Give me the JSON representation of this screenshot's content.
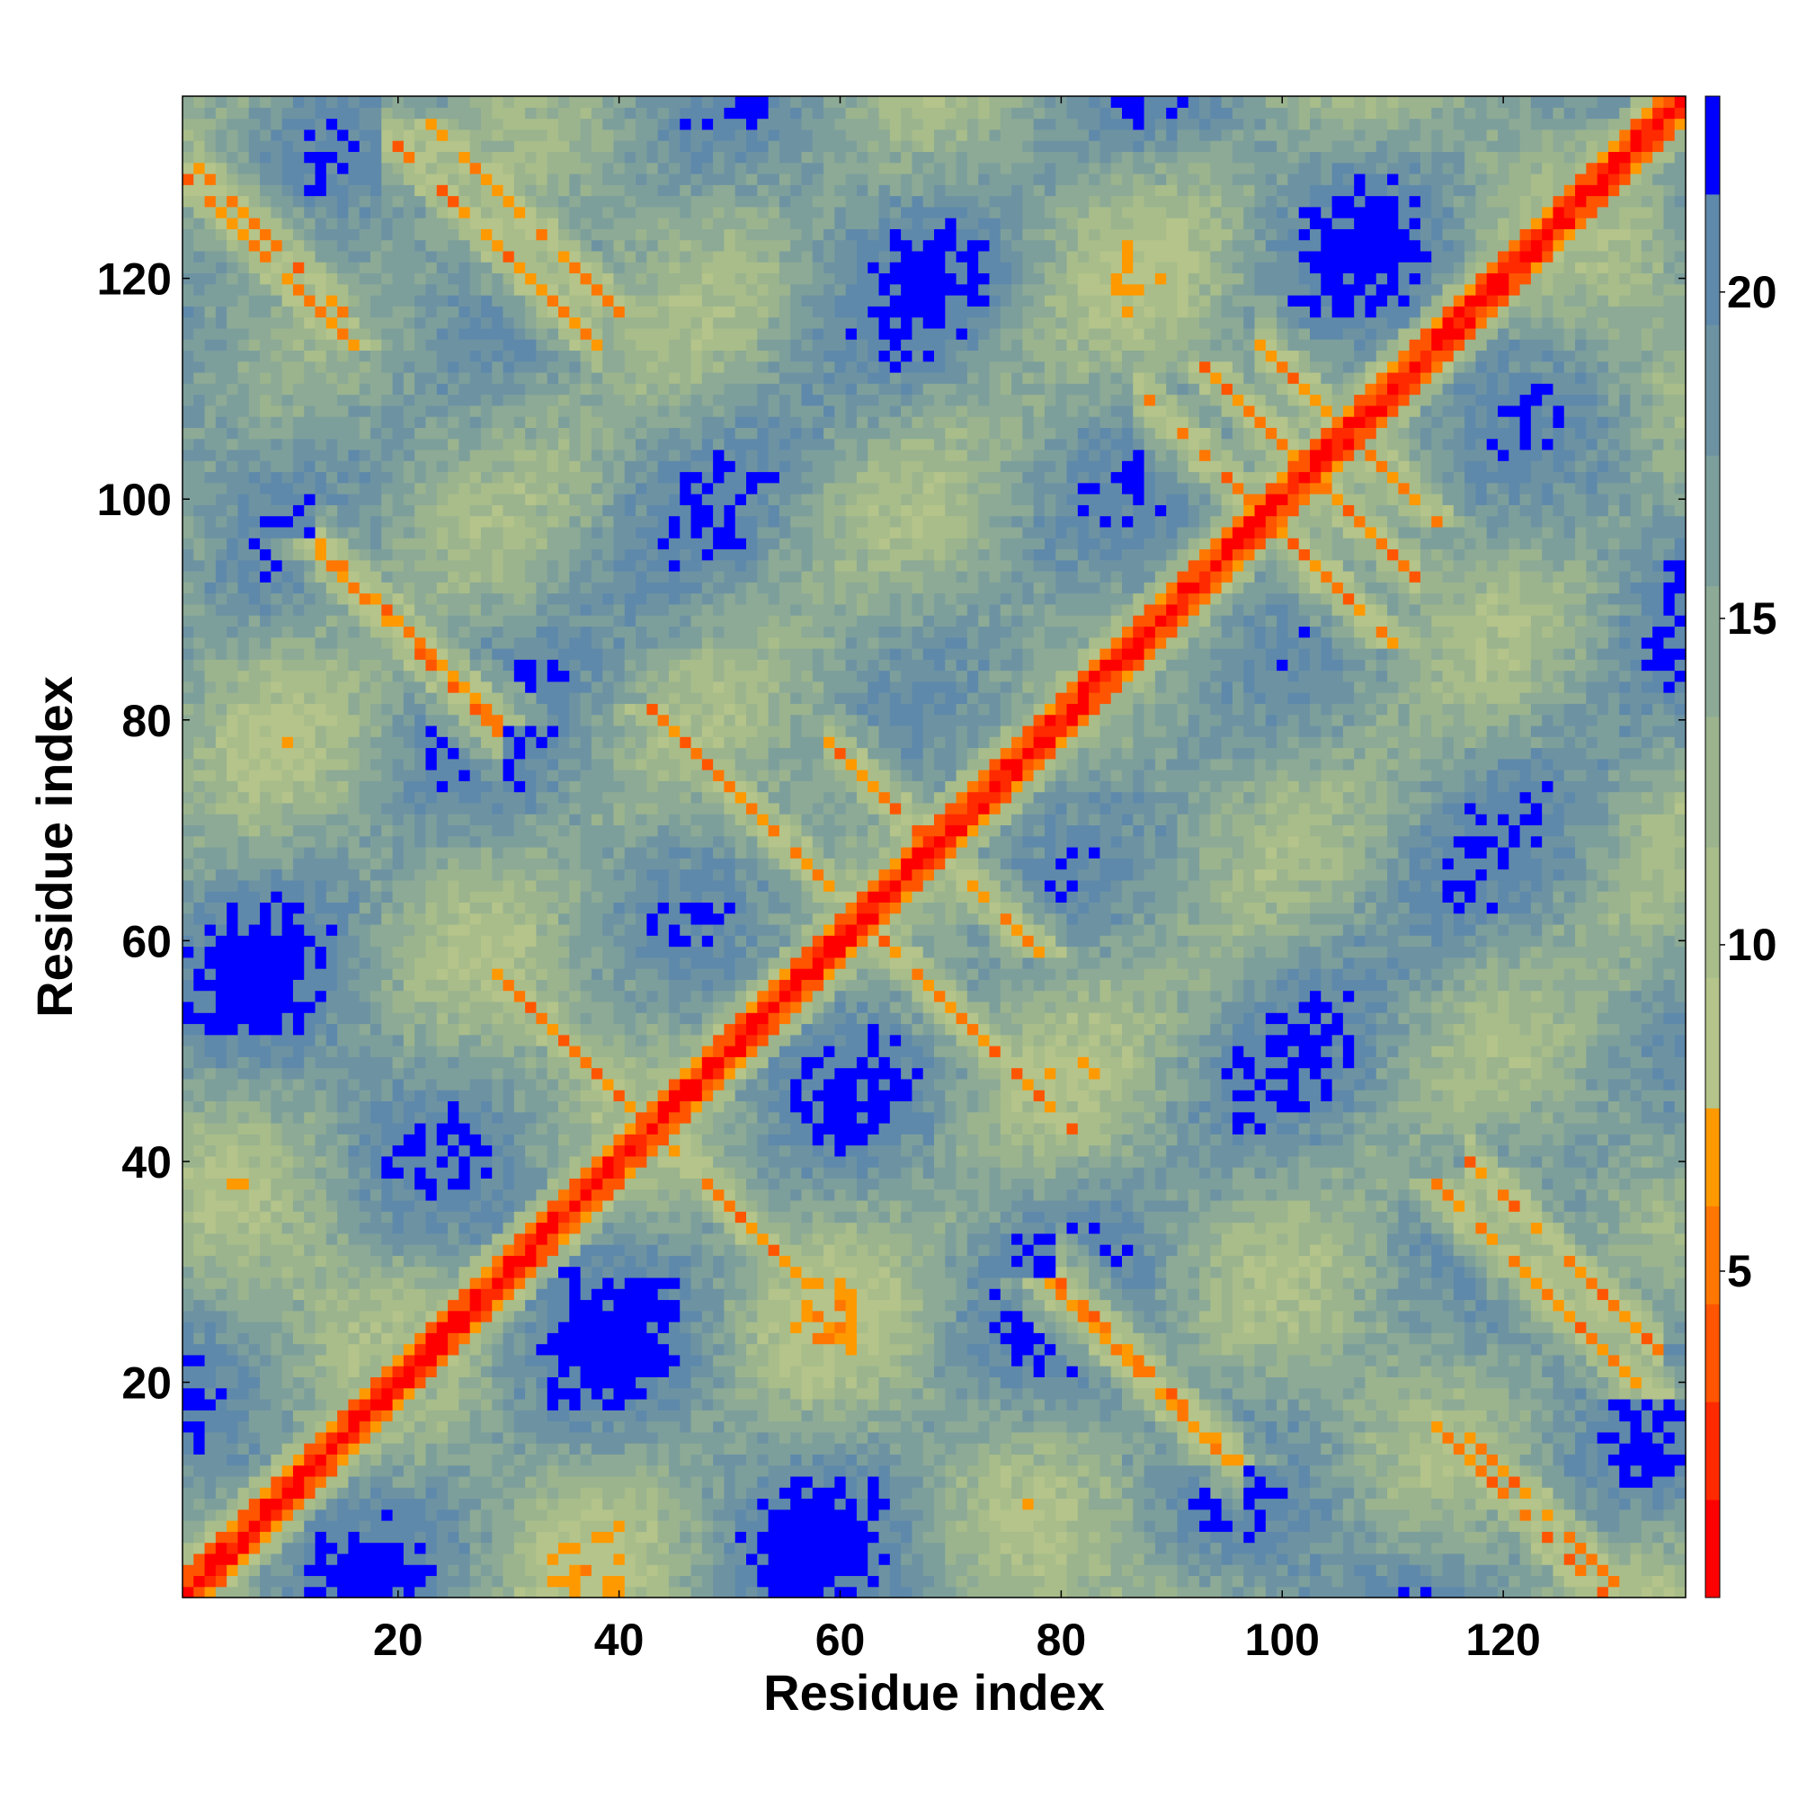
{
  "chart_data": {
    "type": "heatmap",
    "title": "",
    "xlabel": "Residue index",
    "ylabel": "Residue index",
    "n_residues": 136,
    "xlim": [
      1,
      136
    ],
    "ylim": [
      1,
      136
    ],
    "x_ticks": [
      20,
      40,
      60,
      80,
      100,
      120
    ],
    "y_ticks": [
      20,
      40,
      60,
      80,
      100,
      120
    ],
    "colorbar": {
      "ticks": [
        5,
        10,
        15,
        20
      ],
      "range": [
        0,
        23
      ],
      "levels": [
        {
          "max": 1.5,
          "color": "#ff0000"
        },
        {
          "max": 3.0,
          "color": "#ff2a00"
        },
        {
          "max": 4.5,
          "color": "#ff5500"
        },
        {
          "max": 6.0,
          "color": "#ff7700"
        },
        {
          "max": 7.5,
          "color": "#ff9900"
        },
        {
          "max": 9.5,
          "color": "#b4c48a"
        },
        {
          "max": 11.5,
          "color": "#a8bd8a"
        },
        {
          "max": 13.5,
          "color": "#9bb48e"
        },
        {
          "max": 15.5,
          "color": "#8caa95"
        },
        {
          "max": 17.5,
          "color": "#7d9f9c"
        },
        {
          "max": 19.5,
          "color": "#6d93a3"
        },
        {
          "max": 21.5,
          "color": "#5f89aa"
        },
        {
          "max": 23.0,
          "color": "#0000ff"
        }
      ]
    },
    "contact_bands": [
      {
        "type": "diagonal"
      },
      {
        "type": "anti",
        "x_range": [
          40,
          55
        ],
        "sum": 86,
        "strength": 0.5
      },
      {
        "type": "anti",
        "x_range": [
          30,
          44
        ],
        "sum": 86,
        "strength": 0.5
      },
      {
        "type": "anti",
        "x_range": [
          56,
          68
        ],
        "sum": 124,
        "strength": 0.5
      },
      {
        "type": "anti",
        "x_range": [
          45,
          56
        ],
        "sum": 124,
        "strength": 0.5
      },
      {
        "type": "anti",
        "x_range": [
          68,
          80
        ],
        "sum": 124,
        "strength": 0.5
      },
      {
        "type": "anti",
        "x_range": [
          60,
          67
        ],
        "sum": 137,
        "strength": 0.5
      },
      {
        "type": "anti",
        "x_range": [
          95,
          102
        ],
        "sum": 197,
        "strength": 0.5
      },
      {
        "type": "anti",
        "x_range": [
          88,
          96
        ],
        "sum": 197,
        "strength": 0.5
      },
      {
        "type": "anti",
        "x_range": [
          102,
          111
        ],
        "sum": 205,
        "strength": 0.5
      },
      {
        "type": "anti",
        "x_range": [
          99,
          103
        ],
        "sum": 212,
        "strength": 0.5
      },
      {
        "type": "anti",
        "x_range": [
          20,
          37
        ],
        "sum": 152,
        "strength": 0.6
      },
      {
        "type": "anti",
        "x_range": [
          3,
          14
        ],
        "sum": 132,
        "strength": 0.6
      },
      {
        "type": "anti",
        "x_range": [
          14,
          28
        ],
        "sum": 108,
        "strength": 0.6
      },
      {
        "type": "anti",
        "x_range": [
          81,
          95
        ],
        "sum": 109,
        "strength": 0.6
      },
      {
        "type": "anti",
        "x_range": [
          118,
          133
        ],
        "sum": 157,
        "strength": 0.6
      },
      {
        "type": "anti",
        "x_range": [
          115,
          130
        ],
        "sum": 130,
        "strength": 0.6
      }
    ]
  }
}
